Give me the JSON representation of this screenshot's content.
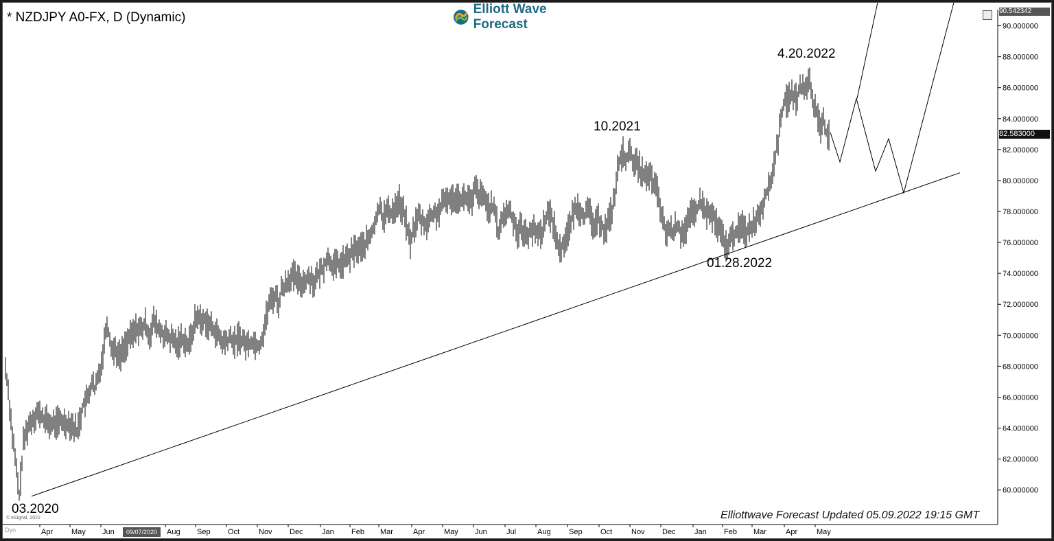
{
  "chart_title": "* NZDJPY A0-FX, D (Dynamic)",
  "logo_text": "Elliott Wave Forecast",
  "footer_note": "Elliottwave Forecast Updated 05.09.2022 19:15 GMT",
  "esignal_credit": "© eSignal, 2022",
  "dyn_label": "Dyn",
  "crosshair_date": "09/07/2020",
  "price_top_label": "90.542342",
  "current_price_label": "82.583000",
  "colors": {
    "price_bars": "#000000",
    "background": "#ffffff",
    "frame": "#1c1c1c",
    "logo_text": "#1f6b84"
  },
  "chart_data": {
    "type": "bar",
    "title": "* NZDJPY A0-FX, D (Dynamic)",
    "xlabel": "",
    "ylabel": "",
    "ylim": [
      59.5,
      90.6
    ],
    "y_ticks": [
      "60.000000",
      "62.000000",
      "64.000000",
      "66.000000",
      "68.000000",
      "70.000000",
      "72.000000",
      "74.000000",
      "76.000000",
      "78.000000",
      "80.000000",
      "82.000000",
      "84.000000",
      "86.000000",
      "88.000000",
      "90.000000"
    ],
    "x_ticks": [
      "Apr",
      "May",
      "Jun",
      "Aug",
      "Sep",
      "Oct",
      "Nov",
      "Dec",
      "Jan",
      "Feb",
      "Mar",
      "Apr",
      "May",
      "Jun",
      "Jul",
      "Aug",
      "Sep",
      "Oct",
      "Nov",
      "Dec",
      "Jan",
      "Feb",
      "Mar",
      "Apr",
      "May"
    ],
    "grid": false,
    "series": [
      {
        "values": [
          [
            0,
            67.9
          ],
          [
            4,
            66.5
          ],
          [
            9,
            64.0
          ],
          [
            14,
            62.0
          ],
          [
            20,
            59.6
          ],
          [
            26,
            63.0
          ],
          [
            32,
            64.0
          ],
          [
            38,
            64.5
          ],
          [
            46,
            65.0
          ],
          [
            56,
            64.6
          ],
          [
            66,
            64.2
          ],
          [
            76,
            64.4
          ],
          [
            86,
            64.4
          ],
          [
            96,
            64.3
          ],
          [
            104,
            63.8
          ],
          [
            108,
            64.5
          ],
          [
            114,
            65.6
          ],
          [
            120,
            65.9
          ],
          [
            126,
            67.0
          ],
          [
            130,
            66.4
          ],
          [
            136,
            67.5
          ],
          [
            141,
            68.5
          ],
          [
            145,
            70.0
          ],
          [
            148,
            70.9
          ],
          [
            150,
            70.2
          ],
          [
            152,
            69.8
          ],
          [
            156,
            69.0
          ],
          [
            160,
            69.2
          ],
          [
            165,
            68.6
          ],
          [
            170,
            68.9
          ],
          [
            176,
            69.5
          ],
          [
            184,
            70.0
          ],
          [
            192,
            70.5
          ],
          [
            198,
            70.3
          ],
          [
            204,
            70.7
          ],
          [
            210,
            70.0
          ],
          [
            216,
            70.9
          ],
          [
            220,
            70.6
          ],
          [
            226,
            70.2
          ],
          [
            232,
            70.0
          ],
          [
            238,
            69.8
          ],
          [
            244,
            69.7
          ],
          [
            250,
            69.4
          ],
          [
            256,
            69.8
          ],
          [
            262,
            69.7
          ],
          [
            266,
            69.3
          ],
          [
            270,
            69.8
          ],
          [
            276,
            70.9
          ],
          [
            282,
            71.3
          ],
          [
            286,
            70.7
          ],
          [
            290,
            71.1
          ],
          [
            294,
            70.8
          ],
          [
            300,
            70.5
          ],
          [
            306,
            70.3
          ],
          [
            310,
            69.9
          ],
          [
            316,
            69.5
          ],
          [
            322,
            69.6
          ],
          [
            328,
            69.8
          ],
          [
            334,
            69.5
          ],
          [
            340,
            69.9
          ],
          [
            346,
            69.6
          ],
          [
            352,
            69.4
          ],
          [
            358,
            69.6
          ],
          [
            364,
            69.5
          ],
          [
            370,
            69.3
          ],
          [
            376,
            70.2
          ],
          [
            380,
            71.2
          ],
          [
            384,
            72.0
          ],
          [
            388,
            72.3
          ],
          [
            394,
            72.6
          ],
          [
            398,
            72.0
          ],
          [
            402,
            72.9
          ],
          [
            408,
            73.3
          ],
          [
            414,
            73.7
          ],
          [
            420,
            73.8
          ],
          [
            426,
            73.5
          ],
          [
            432,
            73.4
          ],
          [
            438,
            73.6
          ],
          [
            444,
            73.8
          ],
          [
            450,
            73.4
          ],
          [
            456,
            73.9
          ],
          [
            462,
            74.3
          ],
          [
            468,
            74.9
          ],
          [
            474,
            74.8
          ],
          [
            478,
            74.4
          ],
          [
            484,
            74.6
          ],
          [
            490,
            74.6
          ],
          [
            496,
            74.9
          ],
          [
            502,
            75.1
          ],
          [
            508,
            75.5
          ],
          [
            514,
            75.6
          ],
          [
            520,
            75.7
          ],
          [
            526,
            76.0
          ],
          [
            532,
            76.4
          ],
          [
            538,
            77.2
          ],
          [
            542,
            77.7
          ],
          [
            546,
            78.6
          ],
          [
            550,
            77.6
          ],
          [
            556,
            78.0
          ],
          [
            562,
            77.9
          ],
          [
            568,
            78.3
          ],
          [
            574,
            78.7
          ],
          [
            578,
            78.0
          ],
          [
            582,
            77.8
          ],
          [
            586,
            76.7
          ],
          [
            590,
            76.0
          ],
          [
            594,
            76.7
          ],
          [
            598,
            77.3
          ],
          [
            602,
            77.7
          ],
          [
            608,
            77.3
          ],
          [
            614,
            77.2
          ],
          [
            620,
            77.7
          ],
          [
            626,
            77.8
          ],
          [
            632,
            78.0
          ],
          [
            638,
            78.5
          ],
          [
            644,
            78.9
          ],
          [
            650,
            78.7
          ],
          [
            656,
            79.0
          ],
          [
            662,
            78.9
          ],
          [
            668,
            78.8
          ],
          [
            674,
            78.9
          ],
          [
            680,
            78.4
          ],
          [
            684,
            79.5
          ],
          [
            688,
            79.2
          ],
          [
            692,
            79.0
          ],
          [
            698,
            78.8
          ],
          [
            704,
            78.3
          ],
          [
            710,
            78.2
          ],
          [
            714,
            77.8
          ],
          [
            718,
            76.7
          ],
          [
            722,
            77.3
          ],
          [
            728,
            77.8
          ],
          [
            734,
            78.1
          ],
          [
            740,
            77.5
          ],
          [
            746,
            76.7
          ],
          [
            752,
            77.0
          ],
          [
            756,
            76.6
          ],
          [
            760,
            76.3
          ],
          [
            764,
            76.9
          ],
          [
            770,
            76.7
          ],
          [
            776,
            76.6
          ],
          [
            782,
            76.7
          ],
          [
            786,
            77.5
          ],
          [
            790,
            77.8
          ],
          [
            796,
            77.6
          ],
          [
            800,
            77.0
          ],
          [
            804,
            76.0
          ],
          [
            808,
            75.5
          ],
          [
            812,
            75.8
          ],
          [
            816,
            76.3
          ],
          [
            820,
            76.8
          ],
          [
            824,
            77.3
          ],
          [
            828,
            77.9
          ],
          [
            832,
            78.3
          ],
          [
            838,
            78.1
          ],
          [
            844,
            77.7
          ],
          [
            850,
            78.0
          ],
          [
            856,
            77.2
          ],
          [
            860,
            77.0
          ],
          [
            864,
            77.5
          ],
          [
            868,
            77.3
          ],
          [
            872,
            76.8
          ],
          [
            876,
            77.0
          ],
          [
            880,
            77.6
          ],
          [
            884,
            78.1
          ],
          [
            888,
            79.1
          ],
          [
            892,
            80.6
          ],
          [
            896,
            81.3
          ],
          [
            900,
            81.8
          ],
          [
            904,
            81.4
          ],
          [
            908,
            81.6
          ],
          [
            912,
            81.7
          ],
          [
            916,
            81.2
          ],
          [
            920,
            81.0
          ],
          [
            924,
            80.8
          ],
          [
            928,
            80.5
          ],
          [
            932,
            80.3
          ],
          [
            936,
            80.1
          ],
          [
            940,
            80.3
          ],
          [
            944,
            79.8
          ],
          [
            948,
            79.4
          ],
          [
            952,
            79.0
          ],
          [
            956,
            77.6
          ],
          [
            960,
            77.0
          ],
          [
            964,
            76.6
          ],
          [
            968,
            76.8
          ],
          [
            972,
            76.7
          ],
          [
            976,
            76.9
          ],
          [
            980,
            77.1
          ],
          [
            984,
            76.6
          ],
          [
            988,
            76.8
          ],
          [
            992,
            76.9
          ],
          [
            996,
            77.4
          ],
          [
            1000,
            77.8
          ],
          [
            1006,
            78.0
          ],
          [
            1012,
            78.5
          ],
          [
            1016,
            78.4
          ],
          [
            1020,
            78.0
          ],
          [
            1026,
            77.7
          ],
          [
            1032,
            77.7
          ],
          [
            1036,
            77.1
          ],
          [
            1040,
            76.7
          ],
          [
            1044,
            76.5
          ],
          [
            1048,
            75.8
          ],
          [
            1052,
            75.9
          ],
          [
            1056,
            76.1
          ],
          [
            1060,
            76.4
          ],
          [
            1064,
            76.7
          ],
          [
            1068,
            76.8
          ],
          [
            1072,
            77.0
          ],
          [
            1076,
            77.0
          ],
          [
            1080,
            76.6
          ],
          [
            1084,
            77.0
          ],
          [
            1088,
            77.1
          ],
          [
            1092,
            77.4
          ],
          [
            1096,
            77.7
          ],
          [
            1100,
            78.1
          ],
          [
            1104,
            78.5
          ],
          [
            1108,
            79.2
          ],
          [
            1112,
            79.4
          ],
          [
            1116,
            80.1
          ],
          [
            1120,
            81.1
          ],
          [
            1124,
            82.1
          ],
          [
            1128,
            83.2
          ],
          [
            1132,
            84.5
          ],
          [
            1136,
            85.3
          ],
          [
            1140,
            85.0
          ],
          [
            1144,
            85.6
          ],
          [
            1148,
            85.5
          ],
          [
            1152,
            85.2
          ],
          [
            1156,
            85.8
          ],
          [
            1160,
            86.0
          ],
          [
            1164,
            85.6
          ],
          [
            1168,
            86.3
          ],
          [
            1172,
            86.4
          ],
          [
            1176,
            85.2
          ],
          [
            1180,
            84.7
          ],
          [
            1184,
            84.0
          ],
          [
            1188,
            83.5
          ],
          [
            1192,
            84.1
          ],
          [
            1196,
            83.1
          ],
          [
            1200,
            82.9
          ]
        ]
      }
    ],
    "annotations": [
      "03.2020",
      "10.2021",
      "01.28.2022",
      "4.20.2022"
    ],
    "trendline": {
      "from": [
        38,
        59.6
      ],
      "to": [
        1391,
        80.5
      ]
    },
    "projection_path": [
      [
        1202,
        83.1
      ],
      [
        1216,
        81.2
      ],
      [
        1240,
        85.3
      ],
      [
        1268,
        80.6
      ],
      [
        1287,
        82.7
      ],
      [
        1309,
        79.2
      ],
      [
        1382,
        91.5
      ]
    ],
    "projection_path_2": [
      [
        1241,
        85.3
      ],
      [
        1271,
        91.5
      ]
    ]
  }
}
